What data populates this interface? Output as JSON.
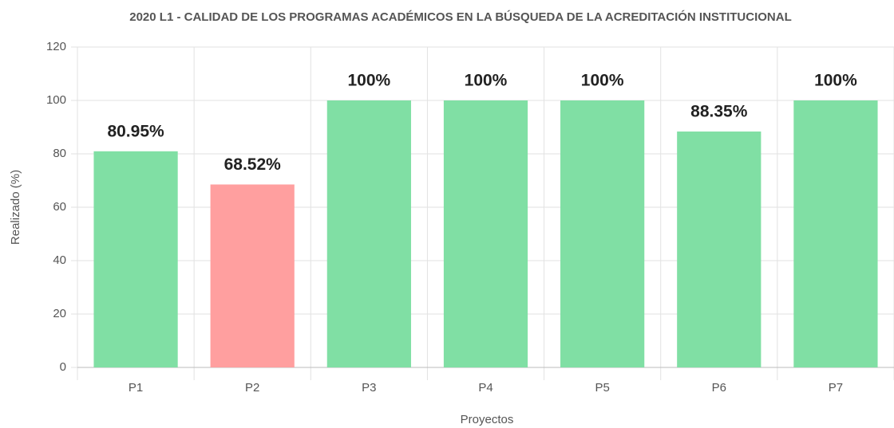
{
  "chart_data": {
    "type": "bar",
    "title": "2020 L1 - CALIDAD DE LOS PROGRAMAS ACADÉMICOS EN LA BÚSQUEDA DE LA ACREDITACIÓN INSTITUCIONAL",
    "x_label": "Proyectos",
    "y_label": "Realizado (%)",
    "categories": [
      "P1",
      "P2",
      "P3",
      "P4",
      "P5",
      "P6",
      "P7"
    ],
    "values": [
      80.95,
      68.52,
      100,
      100,
      100,
      88.35,
      100
    ],
    "value_labels": [
      "80.95%",
      "68.52%",
      "100%",
      "100%",
      "100%",
      "88.35%",
      "100%"
    ],
    "colors": [
      "#80dfa4",
      "#ff9f9f",
      "#80dfa4",
      "#80dfa4",
      "#80dfa4",
      "#80dfa4",
      "#80dfa4"
    ],
    "ylim": [
      0,
      120
    ],
    "yticks": [
      0,
      20,
      40,
      60,
      80,
      100,
      120
    ],
    "grid": true
  }
}
